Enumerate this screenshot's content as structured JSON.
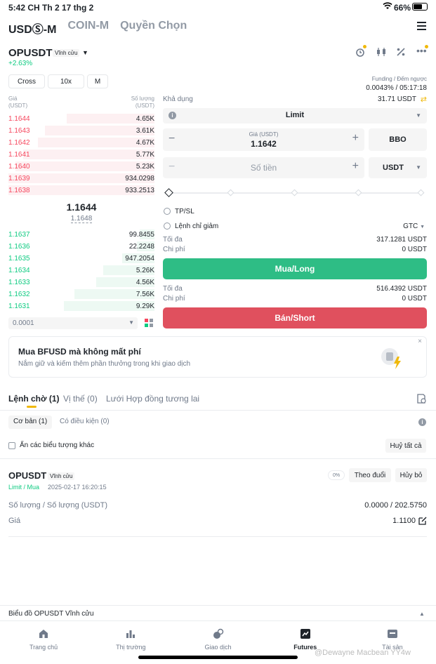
{
  "status_bar": {
    "time": "5:42 CH",
    "date": "Th 2 17 thg 2",
    "battery": "66%"
  },
  "top_tabs": [
    "USDⓈ-M",
    "COIN-M",
    "Quyền Chọn"
  ],
  "symbol": {
    "name": "OPUSDT",
    "badge": "Vĩnh cửu",
    "change": "+2.63%"
  },
  "leverage_controls": {
    "margin_mode": "Cross",
    "leverage": "10x",
    "mode": "M"
  },
  "funding": {
    "label": "Funding / Đếm ngược",
    "value": "0.0043% / 05:17:18"
  },
  "order_book": {
    "price_header": "Giá\n(USDT)",
    "qty_header": "Số lượng\n(USDT)",
    "price_header_l1": "Giá",
    "price_header_l2": "(USDT)",
    "qty_header_l1": "Số lượng",
    "qty_header_l2": "(USDT)",
    "asks": [
      {
        "price": "1.1644",
        "qty": "4.65K"
      },
      {
        "price": "1.1643",
        "qty": "3.61K"
      },
      {
        "price": "1.1642",
        "qty": "4.67K"
      },
      {
        "price": "1.1641",
        "qty": "5.77K"
      },
      {
        "price": "1.1640",
        "qty": "5.23K"
      },
      {
        "price": "1.1639",
        "qty": "934.0298"
      },
      {
        "price": "1.1638",
        "qty": "933.2513"
      }
    ],
    "last_price": "1.1644",
    "mark_price": "1.1648",
    "bids": [
      {
        "price": "1.1637",
        "qty": "99.8455"
      },
      {
        "price": "1.1636",
        "qty": "22.2248"
      },
      {
        "price": "1.1635",
        "qty": "947.2054"
      },
      {
        "price": "1.1634",
        "qty": "5.26K"
      },
      {
        "price": "1.1633",
        "qty": "4.56K"
      },
      {
        "price": "1.1632",
        "qty": "7.56K"
      },
      {
        "price": "1.1631",
        "qty": "9.29K"
      }
    ],
    "tick_size": "0.0001"
  },
  "order_form": {
    "available_label": "Khả dụng",
    "available_value": "31.71 USDT",
    "order_type": "Limit",
    "price_label": "Giá (USDT)",
    "price_value": "1.1642",
    "bbo": "BBO",
    "amount_placeholder": "Số tiền",
    "amount_unit": "USDT",
    "tpsl": "TP/SL",
    "reduce_only": "Lệnh chỉ giảm",
    "tif": "GTC",
    "buy": {
      "max_label": "Tối đa",
      "max_value": "317.1281 USDT",
      "cost_label": "Chi phí",
      "cost_value": "0 USDT",
      "button": "Mua/Long"
    },
    "sell": {
      "max_label": "Tối đa",
      "max_value": "516.4392 USDT",
      "cost_label": "Chi phí",
      "cost_value": "0 USDT",
      "button": "Bán/Short"
    }
  },
  "promo": {
    "title": "Mua BFUSD mà không mất phí",
    "subtitle": "Nắm giữ và kiếm thêm phần thưởng trong khi giao dịch"
  },
  "orders_tabs": [
    "Lệnh chờ (1)",
    "Vị thế (0)",
    "Lưới Hợp đồng tương lai"
  ],
  "sub_tabs": [
    "Cơ bản (1)",
    "Có điều kiện (0)"
  ],
  "hide_symbols": "Ẩn các biểu tượng khác",
  "cancel_all": "Huỷ tất cả",
  "order": {
    "symbol": "OPUSDT",
    "badge": "Vĩnh cửu",
    "side": "Limit / Mua",
    "time": "2025-02-17 16:20:15",
    "progress": "0%",
    "track": "Theo đuổi",
    "cancel": "Hủy bỏ",
    "qty_label": "Số lượng / Số lượng (USDT)",
    "qty_value": "0.0000 / 202.5750",
    "price_label": "Giá",
    "price_value": "1.1100"
  },
  "chart_bar": "Biểu đồ OPUSDT Vĩnh cửu",
  "bottom_nav": [
    {
      "label": "Trang chủ",
      "icon": "home-icon"
    },
    {
      "label": "Thị trường",
      "icon": "markets-icon"
    },
    {
      "label": "Giao dịch",
      "icon": "trade-icon"
    },
    {
      "label": "Futures",
      "icon": "futures-icon"
    },
    {
      "label": "Tài sản",
      "icon": "wallet-icon"
    }
  ],
  "watermark": "@Dewayne Macbean YY4w"
}
